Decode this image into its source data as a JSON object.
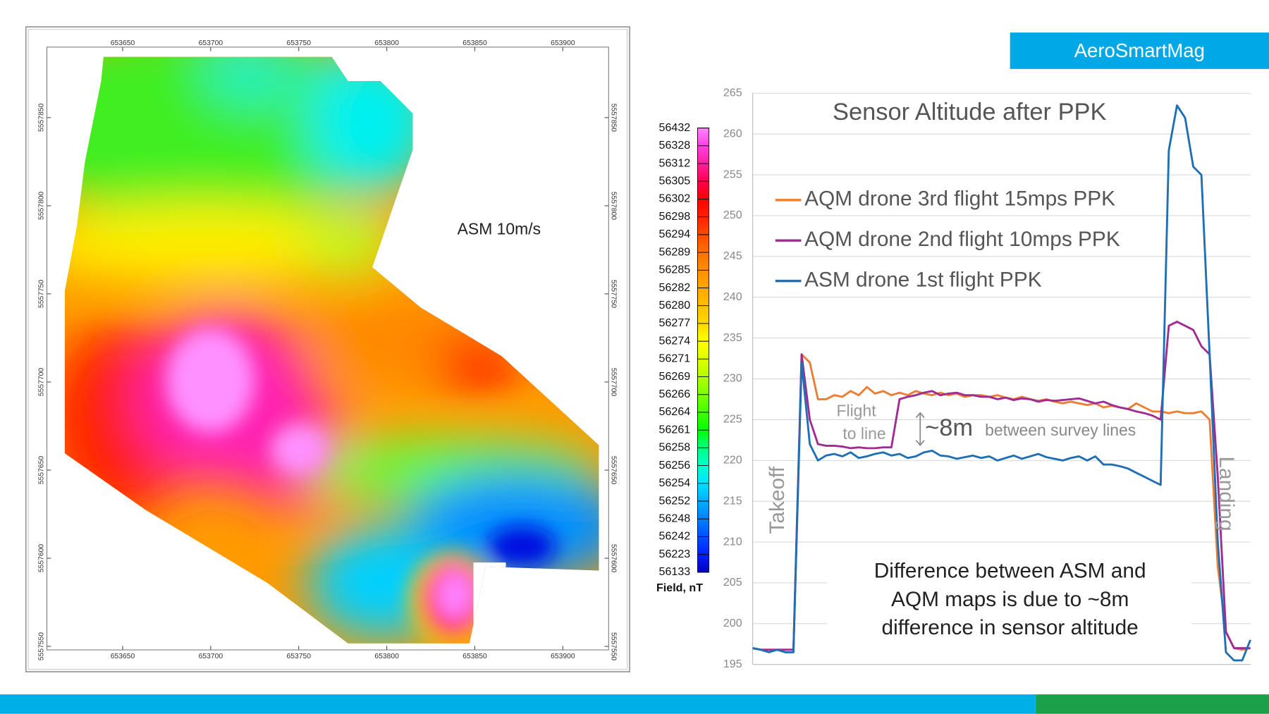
{
  "brand": "AeroSmartMag",
  "map": {
    "label": "ASM 10m/s",
    "xlim": [
      653607,
      653926
    ],
    "xticks": [
      653650,
      653700,
      653750,
      653800,
      653850,
      653900
    ],
    "ylim": [
      5557548,
      5557890
    ],
    "yticks": [
      5557550,
      5557600,
      5557650,
      5557700,
      5557750,
      5557800,
      5557850
    ]
  },
  "colorbar": {
    "title": "Field, nT",
    "values": [
      56432,
      56328,
      56312,
      56305,
      56302,
      56298,
      56294,
      56289,
      56285,
      56282,
      56280,
      56277,
      56274,
      56271,
      56269,
      56266,
      56264,
      56261,
      56258,
      56256,
      56254,
      56252,
      56248,
      56242,
      56223,
      56133
    ],
    "colors": [
      "#ff88ff",
      "#ff40e0",
      "#ff20a0",
      "#ff0050",
      "#ff0000",
      "#ff2000",
      "#ff4a00",
      "#ff7000",
      "#ff9000",
      "#ffa800",
      "#ffc000",
      "#ffd800",
      "#ffff00",
      "#e0ff00",
      "#b0ff00",
      "#80ff00",
      "#40ff00",
      "#00ff00",
      "#00ff80",
      "#00ffd0",
      "#00e0ff",
      "#00b0ff",
      "#0080ff",
      "#0050ff",
      "#0020ff",
      "#0000c0"
    ]
  },
  "chart_data": {
    "type": "line",
    "title": "Sensor Altitude after PPK",
    "ylim": [
      195,
      265
    ],
    "yticks": [
      195,
      200,
      205,
      210,
      215,
      220,
      225,
      230,
      235,
      240,
      245,
      250,
      255,
      260,
      265
    ],
    "grid": true,
    "series": [
      {
        "name": "AQM drone 3rd flight 15mps PPK",
        "color": "#ed7d31",
        "values": [
          197,
          196.8,
          196.8,
          196.8,
          196.8,
          196.8,
          233,
          232,
          227.5,
          227.5,
          228,
          227.8,
          228.5,
          228,
          229,
          228.2,
          228.5,
          228,
          228.3,
          228,
          228.5,
          228.2,
          228,
          228.3,
          228,
          228.2,
          227.8,
          228,
          228,
          227.8,
          228,
          227.7,
          227.5,
          227.8,
          227.5,
          227.3,
          227.5,
          227.2,
          227,
          227.2,
          227,
          226.8,
          227,
          226.5,
          226.7,
          226.5,
          226.3,
          227,
          226.5,
          226,
          226,
          225.8,
          226,
          225.8,
          225.8,
          226,
          225,
          207,
          199,
          197,
          196.8,
          197
        ]
      },
      {
        "name": "AQM drone 2nd flight 10mps PPK",
        "color": "#a02b93",
        "values": [
          197,
          196.8,
          196.8,
          196.8,
          196.8,
          196.8,
          233,
          225,
          222,
          221.8,
          221.8,
          221.7,
          221.5,
          221.6,
          221.5,
          221.5,
          221.6,
          221.6,
          227.5,
          227.8,
          228,
          228.3,
          228.5,
          228,
          228.2,
          228.3,
          228,
          228,
          227.8,
          227.8,
          227.5,
          227.7,
          227.4,
          227.6,
          227.5,
          227.2,
          227.4,
          227.3,
          227.4,
          227.5,
          227.6,
          227.3,
          227,
          227.2,
          226.8,
          226.5,
          226.3,
          226,
          225.8,
          225.5,
          225,
          236.5,
          237,
          236.5,
          236,
          234,
          233,
          218,
          199,
          197,
          197,
          197
        ]
      },
      {
        "name": "ASM drone 1st flight PPK",
        "color": "#1f6fb5",
        "values": [
          197,
          196.8,
          196.5,
          196.8,
          196.5,
          196.5,
          232,
          222,
          220,
          220.6,
          220.8,
          220.5,
          221,
          220.3,
          220.5,
          220.8,
          221,
          220.6,
          220.8,
          220.3,
          220.5,
          221,
          221.2,
          220.6,
          220.5,
          220.2,
          220.4,
          220.6,
          220.3,
          220.5,
          220,
          220.3,
          220.6,
          220.2,
          220.5,
          220.8,
          220.4,
          220.2,
          220,
          220.3,
          220.5,
          220,
          220.5,
          219.5,
          219.5,
          219.3,
          219,
          218.5,
          218,
          217.5,
          217,
          258,
          263.5,
          262,
          256,
          255,
          233,
          210,
          196.5,
          195.5,
          195.5,
          198
        ]
      }
    ],
    "annotations": {
      "flight_to_line": [
        "Flight",
        "to line"
      ],
      "difference": "~8m",
      "difference_note": "between survey lines",
      "takeoff": "Takeoff",
      "landing": "Landing",
      "note": [
        "Difference between ASM and",
        "AQM maps is due to ~8m",
        "difference in sensor altitude"
      ]
    }
  }
}
